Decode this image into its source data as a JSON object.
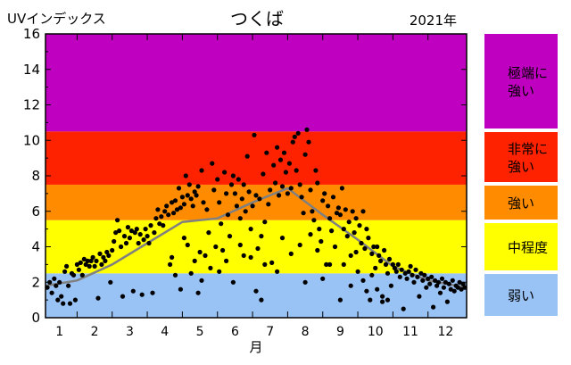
{
  "chart_data": {
    "type": "scatter",
    "title": "つくば",
    "ylabel": "UVインデックス",
    "year_label": "2021年",
    "xlabel": "月",
    "ylim": [
      0,
      16
    ],
    "xlim": [
      0.6,
      12.6
    ],
    "yticks": [
      "0",
      "2",
      "4",
      "6",
      "8",
      "10",
      "12",
      "14",
      "16"
    ],
    "xticks": [
      "1",
      "2",
      "3",
      "4",
      "5",
      "6",
      "7",
      "8",
      "9",
      "10",
      "11",
      "12"
    ],
    "bands": [
      {
        "label": "弱い",
        "from": 0,
        "to": 2.5,
        "color": "#99c2f5"
      },
      {
        "label": "中程度",
        "from": 2.5,
        "to": 5.5,
        "color": "#ffff00"
      },
      {
        "label": "強い",
        "from": 5.5,
        "to": 7.5,
        "color": "#ff8c00"
      },
      {
        "label": "非常に強い",
        "from": 7.5,
        "to": 10.5,
        "color": "#ff2200"
      },
      {
        "label": "極端に強い",
        "from": 10.5,
        "to": 16,
        "color": "#c000c0"
      }
    ],
    "series": [
      {
        "type": "line",
        "color": "#808080",
        "x": [
          0.6,
          1.5,
          2.5,
          3.5,
          4.5,
          5.5,
          6.5,
          7.5,
          8.5,
          9.5,
          10.5,
          11.5,
          12.6
        ],
        "y": [
          1.8,
          2.1,
          3.0,
          4.2,
          5.4,
          5.6,
          6.5,
          7.3,
          5.8,
          4.4,
          2.9,
          2.1,
          1.7
        ]
      },
      {
        "type": "scatter",
        "color": "#000000",
        "points": [
          [
            0.65,
            1.7
          ],
          [
            0.72,
            2.0
          ],
          [
            0.78,
            1.4
          ],
          [
            0.85,
            2.2
          ],
          [
            0.9,
            1.8
          ],
          [
            0.95,
            1.0
          ],
          [
            1.0,
            2.0
          ],
          [
            1.05,
            1.2
          ],
          [
            1.1,
            0.8
          ],
          [
            1.15,
            2.6
          ],
          [
            1.2,
            2.9
          ],
          [
            1.25,
            1.8
          ],
          [
            1.3,
            0.8
          ],
          [
            1.35,
            2.5
          ],
          [
            1.4,
            2.4
          ],
          [
            1.45,
            1.0
          ],
          [
            1.5,
            3.0
          ],
          [
            1.55,
            2.7
          ],
          [
            1.6,
            3.1
          ],
          [
            1.65,
            2.4
          ],
          [
            1.7,
            3.3
          ],
          [
            1.75,
            3.0
          ],
          [
            1.8,
            3.2
          ],
          [
            1.85,
            2.9
          ],
          [
            1.9,
            3.2
          ],
          [
            1.95,
            3.4
          ],
          [
            2.0,
            2.9
          ],
          [
            2.05,
            3.2
          ],
          [
            2.1,
            1.1
          ],
          [
            2.15,
            3.6
          ],
          [
            2.2,
            3.0
          ],
          [
            2.25,
            3.4
          ],
          [
            2.3,
            3.2
          ],
          [
            2.35,
            3.7
          ],
          [
            2.4,
            3.5
          ],
          [
            2.45,
            2.0
          ],
          [
            2.5,
            3.8
          ],
          [
            2.55,
            4.3
          ],
          [
            2.6,
            4.8
          ],
          [
            2.65,
            5.5
          ],
          [
            2.7,
            4.9
          ],
          [
            2.75,
            4.0
          ],
          [
            2.8,
            1.2
          ],
          [
            2.85,
            4.6
          ],
          [
            2.9,
            4.2
          ],
          [
            2.95,
            5.1
          ],
          [
            3.0,
            4.5
          ],
          [
            3.05,
            4.9
          ],
          [
            3.1,
            1.5
          ],
          [
            3.15,
            4.8
          ],
          [
            3.2,
            5.0
          ],
          [
            3.25,
            4.2
          ],
          [
            3.3,
            4.7
          ],
          [
            3.35,
            1.3
          ],
          [
            3.4,
            4.4
          ],
          [
            3.45,
            5.0
          ],
          [
            3.5,
            4.6
          ],
          [
            3.55,
            4.2
          ],
          [
            3.6,
            5.2
          ],
          [
            3.65,
            1.4
          ],
          [
            3.7,
            4.8
          ],
          [
            3.75,
            5.6
          ],
          [
            3.8,
            6.1
          ],
          [
            3.85,
            5.3
          ],
          [
            3.9,
            5.7
          ],
          [
            3.95,
            5.2
          ],
          [
            4.0,
            6.0
          ],
          [
            4.05,
            6.3
          ],
          [
            4.1,
            5.8
          ],
          [
            4.15,
            3.0
          ],
          [
            4.2,
            6.5
          ],
          [
            4.25,
            5.9
          ],
          [
            4.3,
            6.6
          ],
          [
            4.35,
            6.1
          ],
          [
            4.4,
            7.3
          ],
          [
            4.45,
            6.2
          ],
          [
            4.5,
            6.8
          ],
          [
            4.55,
            6.4
          ],
          [
            4.6,
            8.0
          ],
          [
            4.65,
            6.9
          ],
          [
            4.7,
            7.5
          ],
          [
            4.75,
            6.7
          ],
          [
            4.8,
            6.3
          ],
          [
            4.85,
            7.1
          ],
          [
            4.9,
            6.9
          ],
          [
            4.95,
            7.4
          ],
          [
            5.0,
            3.7
          ],
          [
            5.05,
            8.3
          ],
          [
            5.1,
            6.5
          ],
          [
            5.15,
            3.5
          ],
          [
            4.2,
            3.4
          ],
          [
            4.3,
            2.4
          ],
          [
            4.45,
            1.6
          ],
          [
            4.55,
            4.5
          ],
          [
            4.65,
            4.1
          ],
          [
            4.75,
            2.5
          ],
          [
            4.85,
            3.2
          ],
          [
            4.95,
            1.4
          ],
          [
            5.05,
            2.1
          ],
          [
            5.2,
            6.1
          ],
          [
            5.25,
            4.8
          ],
          [
            5.3,
            2.8
          ],
          [
            5.35,
            8.7
          ],
          [
            5.4,
            7.2
          ],
          [
            5.45,
            4.0
          ],
          [
            5.5,
            7.8
          ],
          [
            5.55,
            6.5
          ],
          [
            5.6,
            5.3
          ],
          [
            5.65,
            3.8
          ],
          [
            5.7,
            8.2
          ],
          [
            5.75,
            7.0
          ],
          [
            5.8,
            5.8
          ],
          [
            5.85,
            4.6
          ],
          [
            5.9,
            7.5
          ],
          [
            5.95,
            8.0
          ],
          [
            6.0,
            7.0
          ],
          [
            6.05,
            6.3
          ],
          [
            6.1,
            7.8
          ],
          [
            6.15,
            5.6
          ],
          [
            6.2,
            6.7
          ],
          [
            6.25,
            7.5
          ],
          [
            6.3,
            6.0
          ],
          [
            6.35,
            9.1
          ],
          [
            6.4,
            7.1
          ],
          [
            6.45,
            5.0
          ],
          [
            6.5,
            6.3
          ],
          [
            6.55,
            10.3
          ],
          [
            6.6,
            6.9
          ],
          [
            6.65,
            3.9
          ],
          [
            6.7,
            6.7
          ],
          [
            6.75,
            1.0
          ],
          [
            6.8,
            8.1
          ],
          [
            6.85,
            5.4
          ],
          [
            6.9,
            9.3
          ],
          [
            6.95,
            6.4
          ],
          [
            7.0,
            7.2
          ],
          [
            7.05,
            3.1
          ],
          [
            5.55,
            2.6
          ],
          [
            5.75,
            3.2
          ],
          [
            5.95,
            2.0
          ],
          [
            6.15,
            4.1
          ],
          [
            6.25,
            3.5
          ],
          [
            6.45,
            3.4
          ],
          [
            6.6,
            1.5
          ],
          [
            6.75,
            4.6
          ],
          [
            6.85,
            3.0
          ],
          [
            7.1,
            8.6
          ],
          [
            7.15,
            7.6
          ],
          [
            7.2,
            9.6
          ],
          [
            7.25,
            6.9
          ],
          [
            7.3,
            8.9
          ],
          [
            7.35,
            7.4
          ],
          [
            7.4,
            9.3
          ],
          [
            7.45,
            8.2
          ],
          [
            7.5,
            7.0
          ],
          [
            7.55,
            8.7
          ],
          [
            7.6,
            7.3
          ],
          [
            7.65,
            9.9
          ],
          [
            7.7,
            10.2
          ],
          [
            7.75,
            8.3
          ],
          [
            7.8,
            10.4
          ],
          [
            7.85,
            7.5
          ],
          [
            7.9,
            6.8
          ],
          [
            7.95,
            5.9
          ],
          [
            8.0,
            9.2
          ],
          [
            8.05,
            10.6
          ],
          [
            8.1,
            9.9
          ],
          [
            8.15,
            7.2
          ],
          [
            8.2,
            6.0
          ],
          [
            8.25,
            5.5
          ],
          [
            8.3,
            8.3
          ],
          [
            8.35,
            7.6
          ],
          [
            8.4,
            5.0
          ],
          [
            8.45,
            4.3
          ],
          [
            8.5,
            6.6
          ],
          [
            8.55,
            7.0
          ],
          [
            8.6,
            3.0
          ],
          [
            8.65,
            6.3
          ],
          [
            8.7,
            5.6
          ],
          [
            8.75,
            4.9
          ],
          [
            8.8,
            6.8
          ],
          [
            8.85,
            4.0
          ],
          [
            8.9,
            5.9
          ],
          [
            7.2,
            2.6
          ],
          [
            7.35,
            4.5
          ],
          [
            7.6,
            3.6
          ],
          [
            7.85,
            4.1
          ],
          [
            8.0,
            2.0
          ],
          [
            8.15,
            4.7
          ],
          [
            8.35,
            3.8
          ],
          [
            8.5,
            2.2
          ],
          [
            8.7,
            3.0
          ],
          [
            8.95,
            6.2
          ],
          [
            9.0,
            5.8
          ],
          [
            9.05,
            7.3
          ],
          [
            9.1,
            5.0
          ],
          [
            9.15,
            6.1
          ],
          [
            9.2,
            4.6
          ],
          [
            9.25,
            5.4
          ],
          [
            9.3,
            3.5
          ],
          [
            9.35,
            6.0
          ],
          [
            9.4,
            4.8
          ],
          [
            9.45,
            5.6
          ],
          [
            9.5,
            2.6
          ],
          [
            9.55,
            5.2
          ],
          [
            9.6,
            4.2
          ],
          [
            9.65,
            6.0
          ],
          [
            9.7,
            3.9
          ],
          [
            9.75,
            5.0
          ],
          [
            9.8,
            4.5
          ],
          [
            9.85,
            1.0
          ],
          [
            9.9,
            3.6
          ],
          [
            9.95,
            4.0
          ],
          [
            10.0,
            2.8
          ],
          [
            10.05,
            4.0
          ],
          [
            10.1,
            3.5
          ],
          [
            10.15,
            3.2
          ],
          [
            10.2,
            1.2
          ],
          [
            10.25,
            3.8
          ],
          [
            10.3,
            3.0
          ],
          [
            10.35,
            2.5
          ],
          [
            10.4,
            3.3
          ],
          [
            10.45,
            1.8
          ],
          [
            10.5,
            3.0
          ],
          [
            9.0,
            1.0
          ],
          [
            9.1,
            3.0
          ],
          [
            9.3,
            1.8
          ],
          [
            9.45,
            3.7
          ],
          [
            9.65,
            2.1
          ],
          [
            9.75,
            1.5
          ],
          [
            9.9,
            2.4
          ],
          [
            10.05,
            1.6
          ],
          [
            10.2,
            0.9
          ],
          [
            10.35,
            1.0
          ],
          [
            10.55,
            2.8
          ],
          [
            10.6,
            2.6
          ],
          [
            10.65,
            3.0
          ],
          [
            10.7,
            2.3
          ],
          [
            10.75,
            2.7
          ],
          [
            10.8,
            0.5
          ],
          [
            10.85,
            2.5
          ],
          [
            10.9,
            2.2
          ],
          [
            10.95,
            2.6
          ],
          [
            11.0,
            2.9
          ],
          [
            11.05,
            2.4
          ],
          [
            11.1,
            2.0
          ],
          [
            11.15,
            2.7
          ],
          [
            11.2,
            2.3
          ],
          [
            11.25,
            1.2
          ],
          [
            11.3,
            2.5
          ],
          [
            11.35,
            2.1
          ],
          [
            11.4,
            2.4
          ],
          [
            11.45,
            1.7
          ],
          [
            11.5,
            2.2
          ],
          [
            11.55,
            1.9
          ],
          [
            11.6,
            2.3
          ],
          [
            11.65,
            0.6
          ],
          [
            11.7,
            2.1
          ],
          [
            11.75,
            1.8
          ],
          [
            11.8,
            2.0
          ],
          [
            11.85,
            1.4
          ],
          [
            11.9,
            2.2
          ],
          [
            11.95,
            1.7
          ],
          [
            12.0,
            2.0
          ],
          [
            12.05,
            0.9
          ],
          [
            12.1,
            1.9
          ],
          [
            12.15,
            1.6
          ],
          [
            12.2,
            2.1
          ],
          [
            12.25,
            1.5
          ],
          [
            12.3,
            1.8
          ],
          [
            12.35,
            1.7
          ],
          [
            12.4,
            2.0
          ],
          [
            12.45,
            1.6
          ],
          [
            12.5,
            1.9
          ],
          [
            12.55,
            1.7
          ]
        ]
      }
    ],
    "legend_placement": "right"
  }
}
